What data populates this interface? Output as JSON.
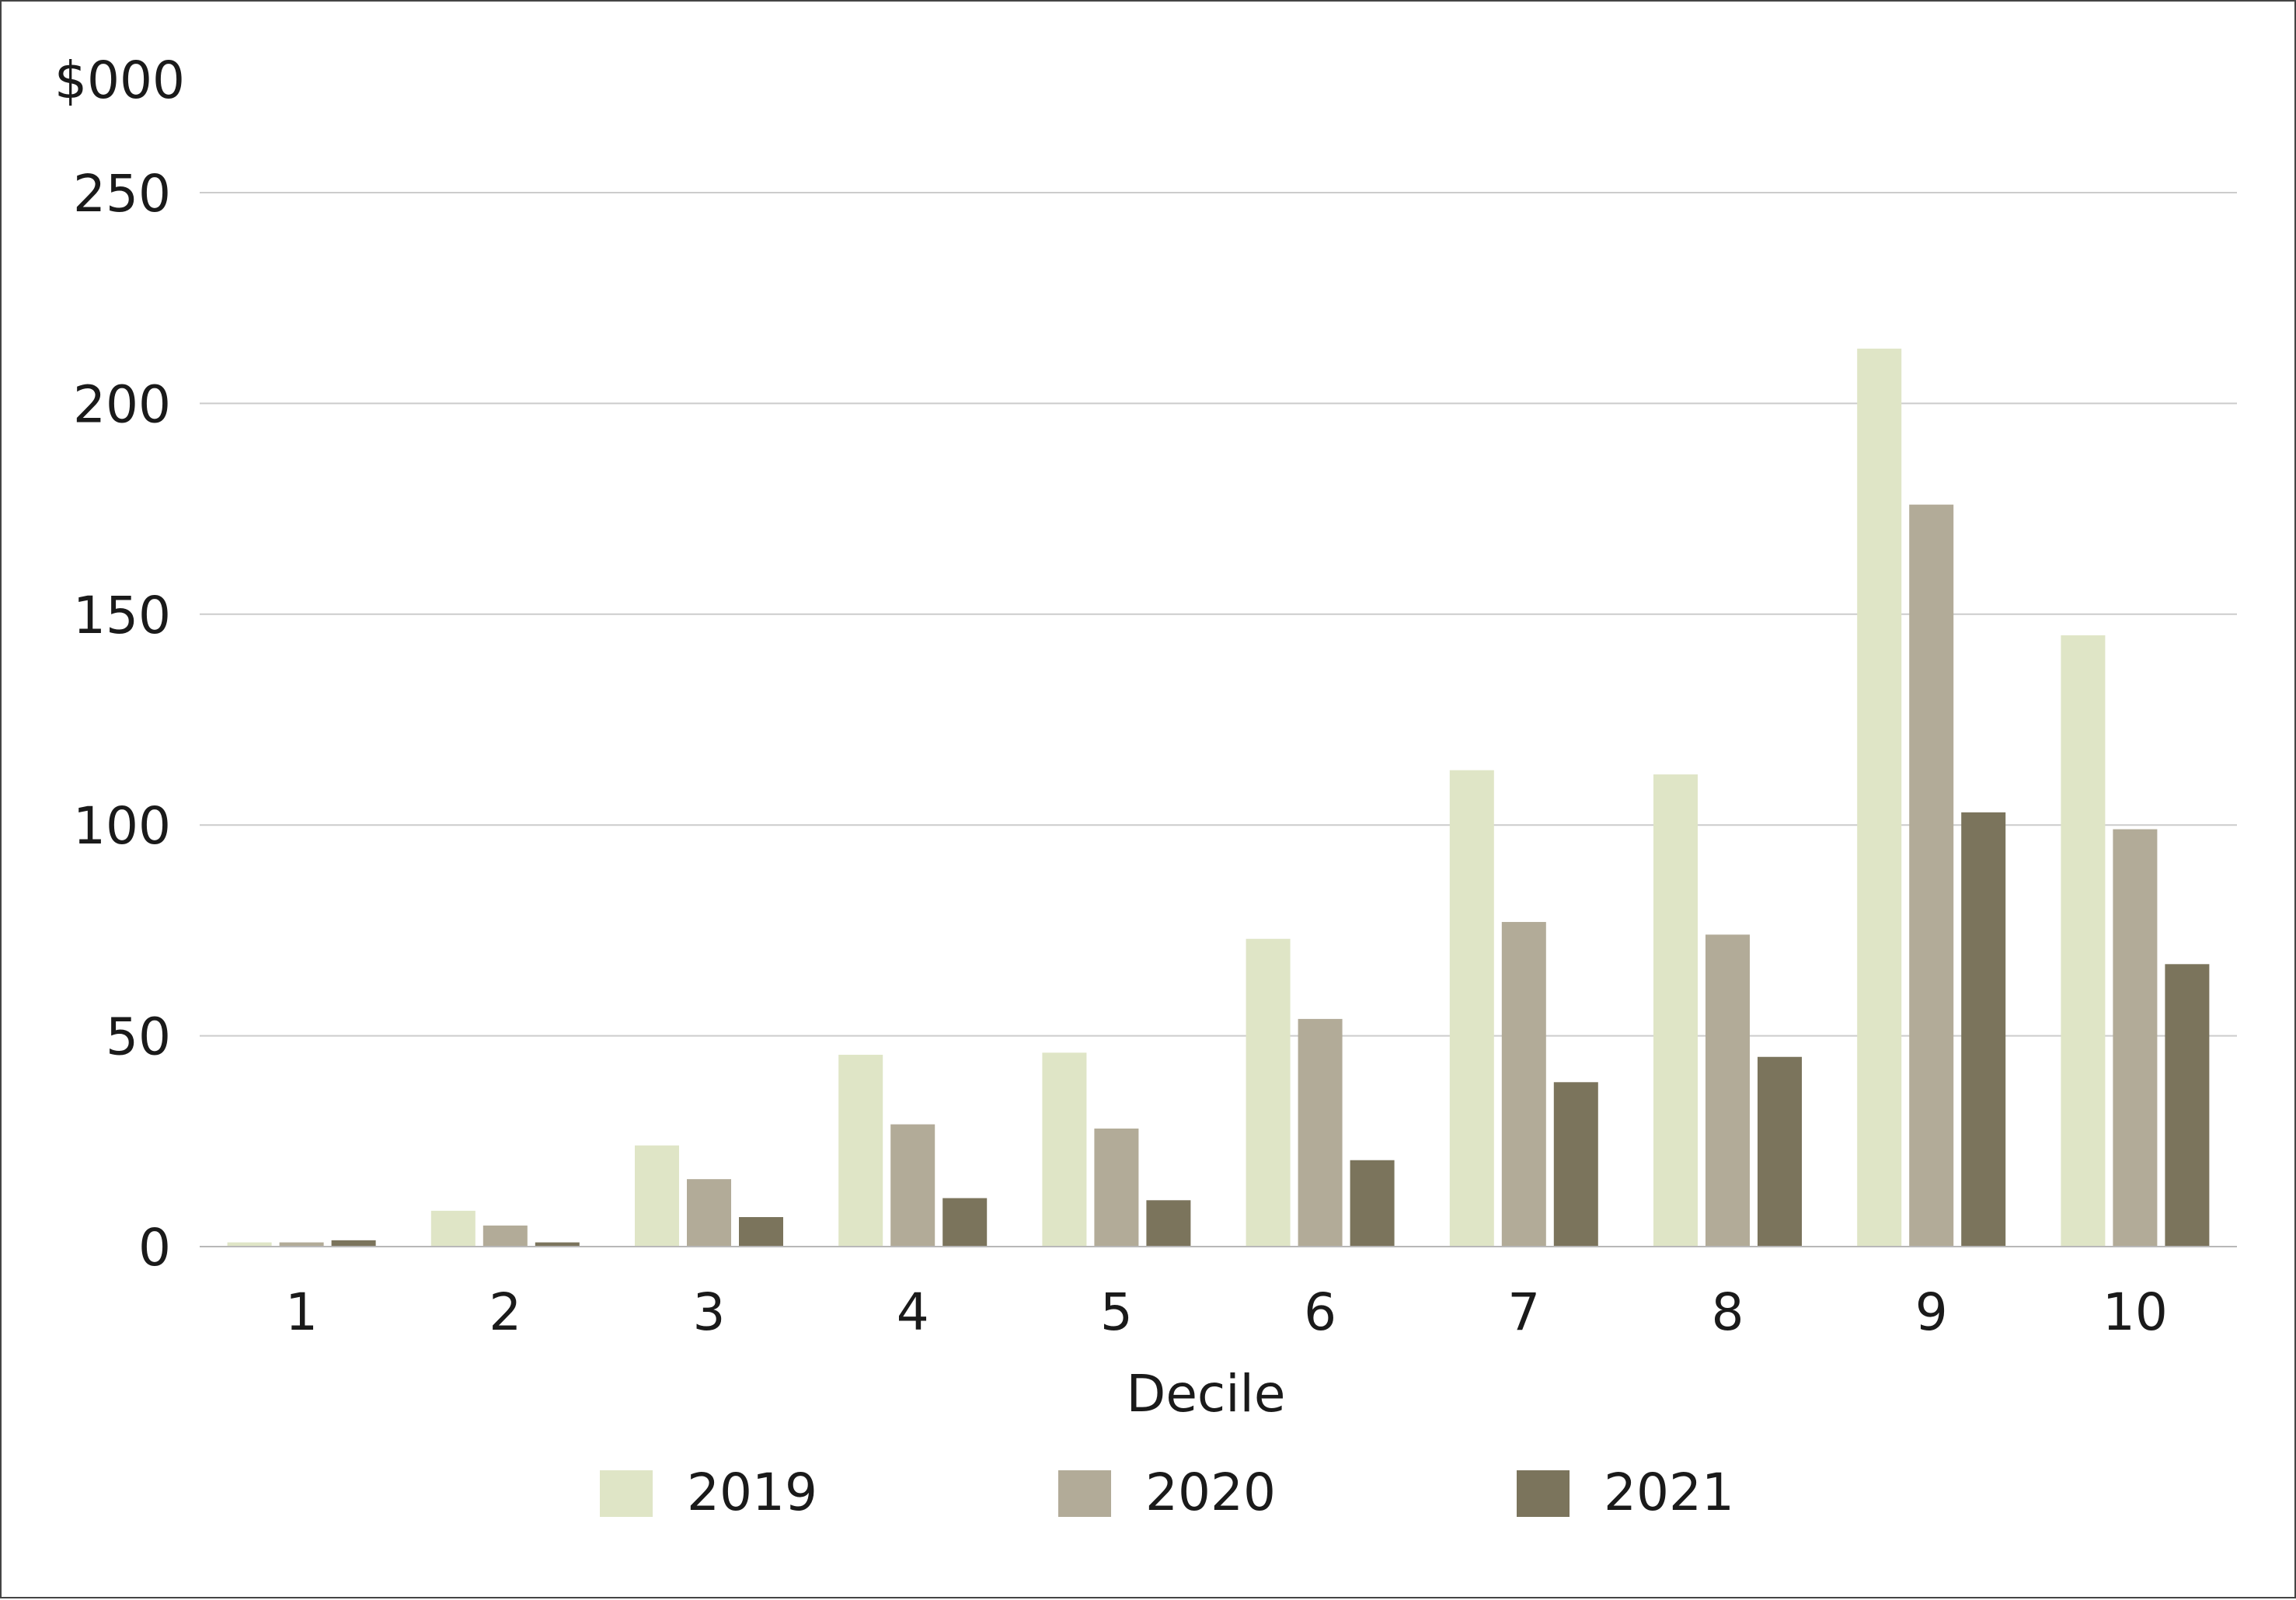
{
  "chart_data": {
    "type": "bar",
    "title": "",
    "unit_label": "$000",
    "xlabel": "Decile",
    "ylabel": "",
    "ylim": [
      0,
      250
    ],
    "yticks": [
      0,
      50,
      100,
      150,
      200,
      250
    ],
    "grid": true,
    "legend_position": "bottom",
    "categories": [
      "1",
      "2",
      "3",
      "4",
      "5",
      "6",
      "7",
      "8",
      "9",
      "10"
    ],
    "series": [
      {
        "name": "2019",
        "color": "#dfe5c6",
        "values": [
          1,
          8.5,
          24,
          45.5,
          46,
          73,
          113,
          112,
          213,
          145
        ]
      },
      {
        "name": "2020",
        "color": "#b2ab98",
        "values": [
          1,
          5,
          16,
          29,
          28,
          54,
          77,
          74,
          176,
          99
        ]
      },
      {
        "name": "2021",
        "color": "#7b745c",
        "values": [
          1.5,
          1,
          7,
          11.5,
          11,
          20.5,
          39,
          45,
          103,
          67
        ]
      }
    ]
  }
}
